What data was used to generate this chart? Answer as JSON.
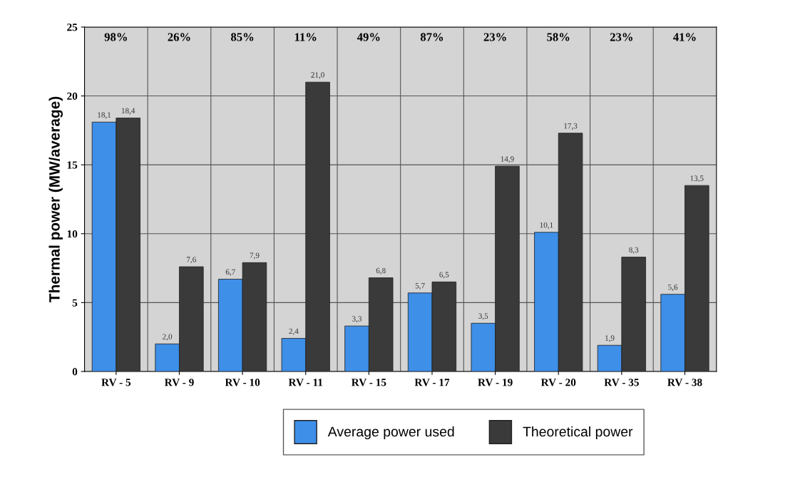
{
  "chart_data": {
    "type": "bar",
    "ylabel": "Thermal power (MW/average)",
    "categories": [
      "RV - 5",
      "RV - 9",
      "RV - 10",
      "RV - 11",
      "RV - 15",
      "RV - 17",
      "RV - 19",
      "RV - 20",
      "RV - 35",
      "RV - 38"
    ],
    "series": [
      {
        "name": "Average power used",
        "color": "#3d8fe8",
        "values": [
          18.1,
          2.0,
          6.7,
          2.4,
          3.3,
          5.7,
          3.5,
          10.1,
          1.9,
          5.6
        ],
        "value_labels": [
          "18,1",
          "2,0",
          "6,7",
          "2,4",
          "3,3",
          "5,7",
          "3,5",
          "10,1",
          "1,9",
          "5,6"
        ]
      },
      {
        "name": "Theoretical power",
        "color": "#3a3a3a",
        "values": [
          18.4,
          7.6,
          7.9,
          21.0,
          6.8,
          6.5,
          14.9,
          17.3,
          8.3,
          13.5
        ],
        "value_labels": [
          "18,4",
          "7,6",
          "7,9",
          "21,0",
          "6,8",
          "6,5",
          "14,9",
          "17,3",
          "8,3",
          "13,5"
        ]
      }
    ],
    "annotations": [
      "98%",
      "26%",
      "85%",
      "11%",
      "49%",
      "87%",
      "23%",
      "58%",
      "23%",
      "41%"
    ],
    "ylim": [
      0,
      25
    ],
    "yticks": [
      0,
      5,
      10,
      15,
      20,
      25
    ],
    "grid": "y",
    "legend": "bottom"
  }
}
